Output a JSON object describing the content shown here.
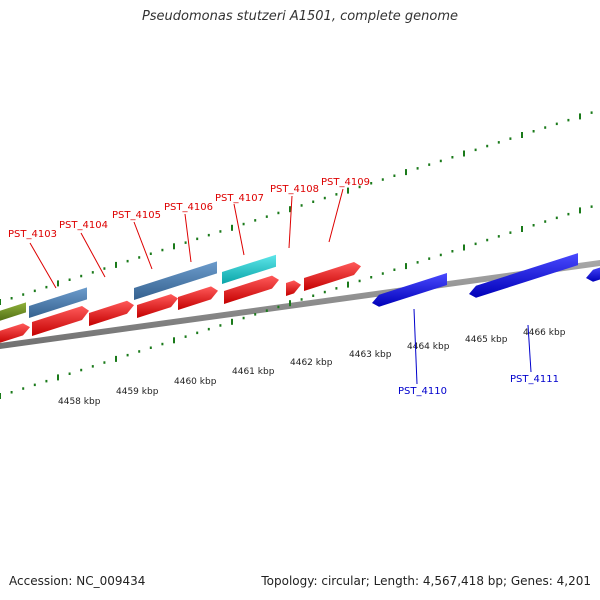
{
  "title": "Pseudomonas stutzeri A1501, complete genome",
  "accession_text": "Accession: NC_009434",
  "topology_text": "Topology: circular; Length: 4,567,418 bp; Genes: 4,201",
  "colors": {
    "backbone": "#8c8c8c",
    "tick": "#1a7a1a",
    "forward_label": "#dd0000",
    "reverse_label": "#0000cc",
    "red_gene": "#ee1111",
    "steelblue_gene": "#4a7fb5",
    "cyan_gene": "#14c8cc",
    "olive_gene": "#6b8e23",
    "blue_gene": "#1010ee"
  },
  "scale_labels": [
    "4458 kbp",
    "4459 kbp",
    "4460 kbp",
    "4461 kbp",
    "4462 kbp",
    "4463 kbp",
    "4464 kbp",
    "4465 kbp",
    "4466 kbp"
  ],
  "forward_genes": [
    "PST_4103",
    "PST_4104",
    "PST_4105",
    "PST_4106",
    "PST_4107",
    "PST_4108",
    "PST_4109"
  ],
  "reverse_genes": [
    "PST_4110",
    "PST_4111"
  ]
}
